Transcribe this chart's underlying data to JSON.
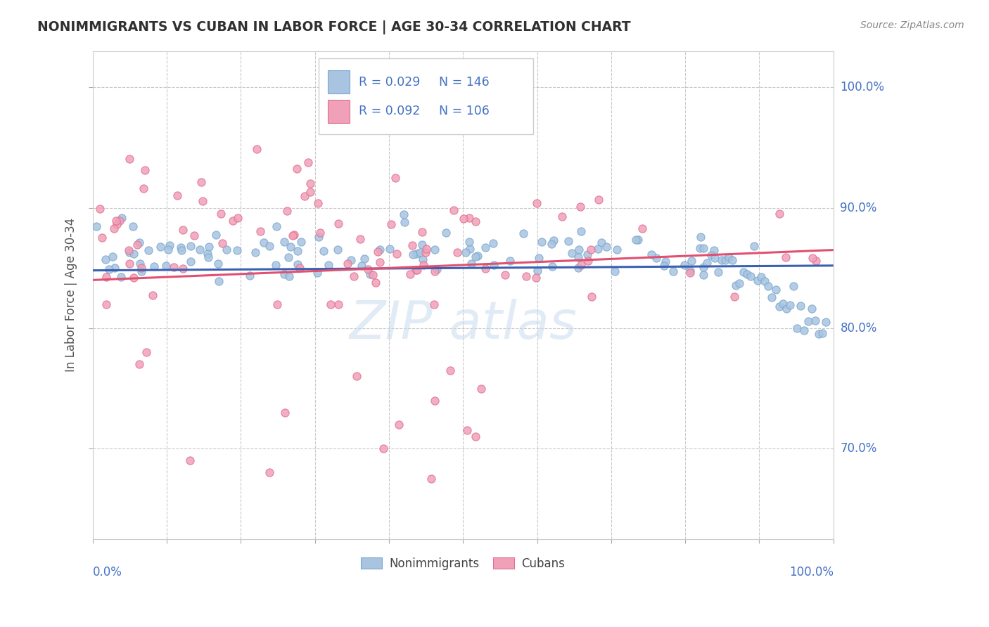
{
  "title": "NONIMMIGRANTS VS CUBAN IN LABOR FORCE | AGE 30-34 CORRELATION CHART",
  "source_text": "Source: ZipAtlas.com",
  "ylabel": "In Labor Force | Age 30-34",
  "legend_r_nonimm": "R = 0.029",
  "legend_n_nonimm": "N = 146",
  "legend_r_cuban": "R = 0.092",
  "legend_n_cuban": "N = 106",
  "nonimm_color": "#a8c4e0",
  "nonimm_edge_color": "#7aa8d0",
  "cuban_color": "#f0a0b8",
  "cuban_edge_color": "#e07090",
  "nonimm_line_color": "#3a60b0",
  "cuban_line_color": "#e05070",
  "background_color": "#ffffff",
  "grid_color": "#bbbbbb",
  "title_color": "#303030",
  "axis_label_color": "#4472c4",
  "legend_text_color": "#222222",
  "ylabel_color": "#555555",
  "source_color": "#888888",
  "xlim": [
    0.0,
    1.0
  ],
  "ylim": [
    0.625,
    1.03
  ],
  "ytick_vals": [
    0.7,
    0.8,
    0.9,
    1.0
  ],
  "ytick_labels": [
    "70.0%",
    "80.0%",
    "90.0%",
    "100.0%"
  ],
  "nonimm_trend_start": 0.848,
  "nonimm_trend_end": 0.852,
  "cuban_trend_start": 0.84,
  "cuban_trend_end": 0.865
}
